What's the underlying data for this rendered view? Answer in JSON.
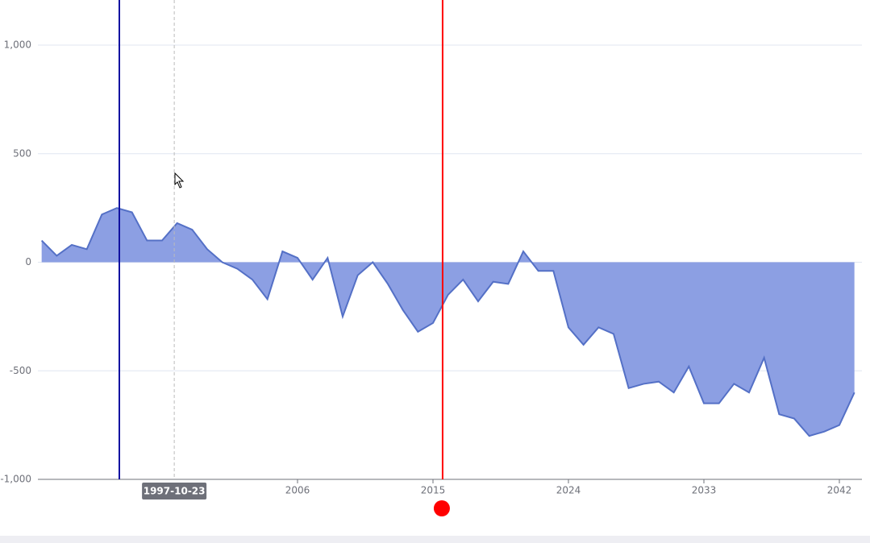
{
  "chart_data": {
    "type": "area",
    "x": [
      1989,
      1990,
      1991,
      1992,
      1993,
      1994,
      1995,
      1996,
      1997,
      1998,
      1999,
      2000,
      2001,
      2002,
      2003,
      2004,
      2005,
      2006,
      2007,
      2008,
      2009,
      2010,
      2011,
      2012,
      2013,
      2014,
      2015,
      2016,
      2017,
      2018,
      2019,
      2020,
      2021,
      2022,
      2023,
      2024,
      2025,
      2026,
      2027,
      2028,
      2029,
      2030,
      2031,
      2032,
      2033,
      2034,
      2035,
      2036,
      2037,
      2038,
      2039,
      2040,
      2041,
      2042,
      2043
    ],
    "series": [
      {
        "color": "#5470c6",
        "area_color": "#8c9fe3",
        "values": [
          100,
          30,
          80,
          60,
          220,
          250,
          230,
          100,
          100,
          180,
          150,
          60,
          0,
          -30,
          -80,
          -170,
          50,
          20,
          -80,
          20,
          -250,
          -60,
          0,
          -100,
          -220,
          -320,
          -280,
          -150,
          -80,
          -180,
          -90,
          -100,
          50,
          -40,
          -40,
          -300,
          -380,
          -300,
          -330,
          -580,
          -560,
          -550,
          -600,
          -480,
          -650,
          -650,
          -560,
          -600,
          -440,
          -700,
          -720,
          -800,
          -780,
          -750,
          -600
        ]
      }
    ],
    "xlim": [
      1988.75,
      2043.5
    ],
    "xticks": [
      2006,
      2015,
      2024,
      2033,
      2042
    ],
    "ylim": [
      -1000,
      1000
    ],
    "yticks": [
      {
        "value": -1000,
        "label": "-1,000"
      },
      -500,
      0,
      500,
      {
        "value": 1000,
        "label": "1,000"
      }
    ],
    "grid": true,
    "mark_lines": [
      {
        "x": 1994.16,
        "color": "#1010a0"
      },
      {
        "x": 2015.64,
        "color": "#ff0000"
      }
    ],
    "pointer": {
      "x": 1997.81,
      "label": "1997-10-23"
    }
  }
}
